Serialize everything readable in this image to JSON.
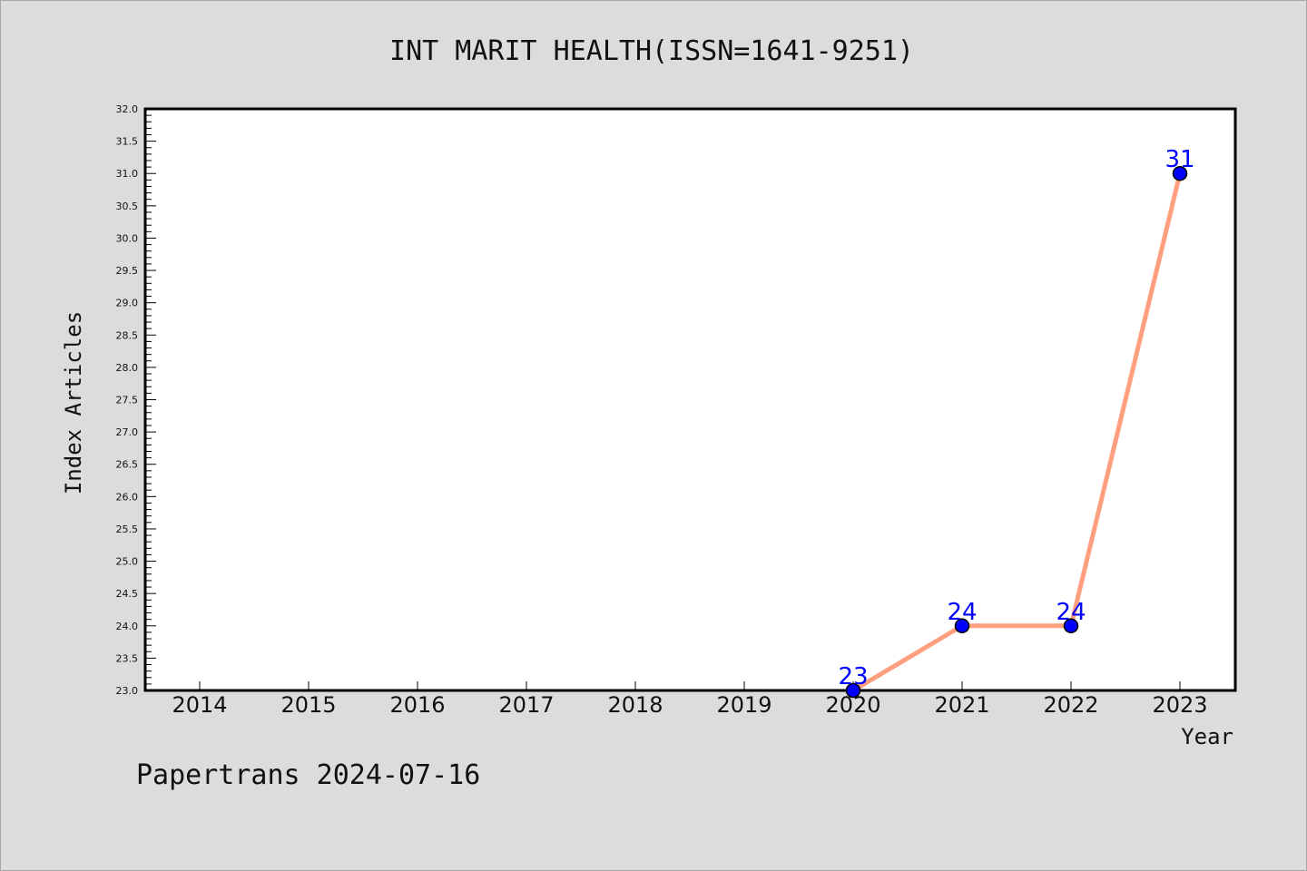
{
  "chart_data": {
    "type": "line",
    "title": "INT MARIT HEALTH(ISSN=1641-9251)",
    "xlabel": "Year",
    "ylabel": "Index Articles",
    "categories": [
      "2014",
      "2015",
      "2016",
      "2017",
      "2018",
      "2019",
      "2020",
      "2021",
      "2022",
      "2023"
    ],
    "ylim": [
      23.0,
      32.0
    ],
    "yticks": [
      "23.0",
      "23.5",
      "24.0",
      "24.5",
      "25.0",
      "25.5",
      "26.0",
      "26.5",
      "27.0",
      "27.5",
      "28.0",
      "28.5",
      "29.0",
      "29.5",
      "30.0",
      "30.5",
      "31.0",
      "31.5",
      "32.0"
    ],
    "series": [
      {
        "points": [
          {
            "x": "2020",
            "y": 23,
            "label": "23"
          },
          {
            "x": "2021",
            "y": 24,
            "label": "24"
          },
          {
            "x": "2022",
            "y": 24,
            "label": "24"
          },
          {
            "x": "2023",
            "y": 31,
            "label": "31"
          }
        ],
        "line_color": "#ff9f7f",
        "marker_color": "#0000ff"
      }
    ],
    "grid": false,
    "footer": "Papertrans 2024-07-16"
  }
}
